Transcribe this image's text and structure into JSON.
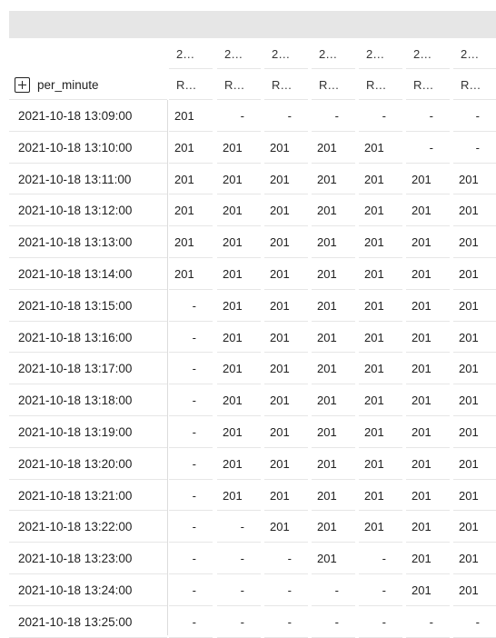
{
  "header": {
    "column_headers_top": [
      "2…",
      "2…",
      "2…",
      "2…",
      "2…",
      "2…",
      "2…"
    ],
    "column_headers_bottom": [
      "R…",
      "R…",
      "R…",
      "R…",
      "R…",
      "R…",
      "R…"
    ],
    "row_dimension_label": "per_minute",
    "expand_icon": "plus-square-icon"
  },
  "table": {
    "rows": [
      {
        "time": "2021-10-18 13:09:00",
        "values": [
          "201",
          "-",
          "-",
          "-",
          "-",
          "-",
          "-"
        ]
      },
      {
        "time": "2021-10-18 13:10:00",
        "values": [
          "201",
          "201",
          "201",
          "201",
          "201",
          "-",
          "-"
        ]
      },
      {
        "time": "2021-10-18 13:11:00",
        "values": [
          "201",
          "201",
          "201",
          "201",
          "201",
          "201",
          "201"
        ]
      },
      {
        "time": "2021-10-18 13:12:00",
        "values": [
          "201",
          "201",
          "201",
          "201",
          "201",
          "201",
          "201"
        ]
      },
      {
        "time": "2021-10-18 13:13:00",
        "values": [
          "201",
          "201",
          "201",
          "201",
          "201",
          "201",
          "201"
        ]
      },
      {
        "time": "2021-10-18 13:14:00",
        "values": [
          "201",
          "201",
          "201",
          "201",
          "201",
          "201",
          "201"
        ]
      },
      {
        "time": "2021-10-18 13:15:00",
        "values": [
          "-",
          "201",
          "201",
          "201",
          "201",
          "201",
          "201"
        ]
      },
      {
        "time": "2021-10-18 13:16:00",
        "values": [
          "-",
          "201",
          "201",
          "201",
          "201",
          "201",
          "201"
        ]
      },
      {
        "time": "2021-10-18 13:17:00",
        "values": [
          "-",
          "201",
          "201",
          "201",
          "201",
          "201",
          "201"
        ]
      },
      {
        "time": "2021-10-18 13:18:00",
        "values": [
          "-",
          "201",
          "201",
          "201",
          "201",
          "201",
          "201"
        ]
      },
      {
        "time": "2021-10-18 13:19:00",
        "values": [
          "-",
          "201",
          "201",
          "201",
          "201",
          "201",
          "201"
        ]
      },
      {
        "time": "2021-10-18 13:20:00",
        "values": [
          "-",
          "201",
          "201",
          "201",
          "201",
          "201",
          "201"
        ]
      },
      {
        "time": "2021-10-18 13:21:00",
        "values": [
          "-",
          "201",
          "201",
          "201",
          "201",
          "201",
          "201"
        ]
      },
      {
        "time": "2021-10-18 13:22:00",
        "values": [
          "-",
          "-",
          "201",
          "201",
          "201",
          "201",
          "201"
        ]
      },
      {
        "time": "2021-10-18 13:23:00",
        "values": [
          "-",
          "-",
          "-",
          "201",
          "-",
          "201",
          "201"
        ]
      },
      {
        "time": "2021-10-18 13:24:00",
        "values": [
          "-",
          "-",
          "-",
          "-",
          "-",
          "201",
          "201"
        ]
      },
      {
        "time": "2021-10-18 13:25:00",
        "values": [
          "-",
          "-",
          "-",
          "-",
          "-",
          "-",
          "-"
        ]
      }
    ]
  }
}
